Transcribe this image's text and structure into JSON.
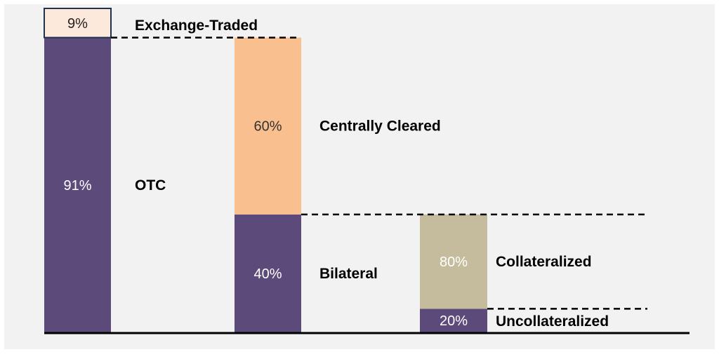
{
  "chart_data": {
    "type": "bar",
    "subtype": "stacked-breakdown",
    "title": "",
    "xlabel": "",
    "ylabel": "",
    "grid": false,
    "legend": "none",
    "columns": [
      {
        "segments": [
          {
            "value": 91,
            "label": "91%",
            "category": "OTC",
            "color": "#5c4a7a",
            "label_color": "#ffffff"
          },
          {
            "value": 9,
            "label": "9%",
            "category": "Exchange-Traded",
            "color": "#fde8dc",
            "label_color": "#222222",
            "outlined": true
          }
        ]
      },
      {
        "segments": [
          {
            "value": 40,
            "label": "40%",
            "category": "Bilateral",
            "color": "#5c4a7a",
            "label_color": "#ffffff"
          },
          {
            "value": 60,
            "label": "60%",
            "category": "Centrally Cleared",
            "color": "#f9bf8f",
            "label_color": "#333333"
          }
        ]
      },
      {
        "segments": [
          {
            "value": 20,
            "label": "20%",
            "category": "Uncollateralized",
            "color": "#5c4a7a",
            "label_color": "#ffffff"
          },
          {
            "value": 80,
            "label": "80%",
            "category": "Collateralized",
            "color": "#c4bc9c",
            "label_color": "#ffffff"
          }
        ]
      }
    ]
  },
  "colors": {
    "background": "#f2f2f2",
    "axis": "#000000",
    "connector": "#000000",
    "category_text": "#000000"
  }
}
